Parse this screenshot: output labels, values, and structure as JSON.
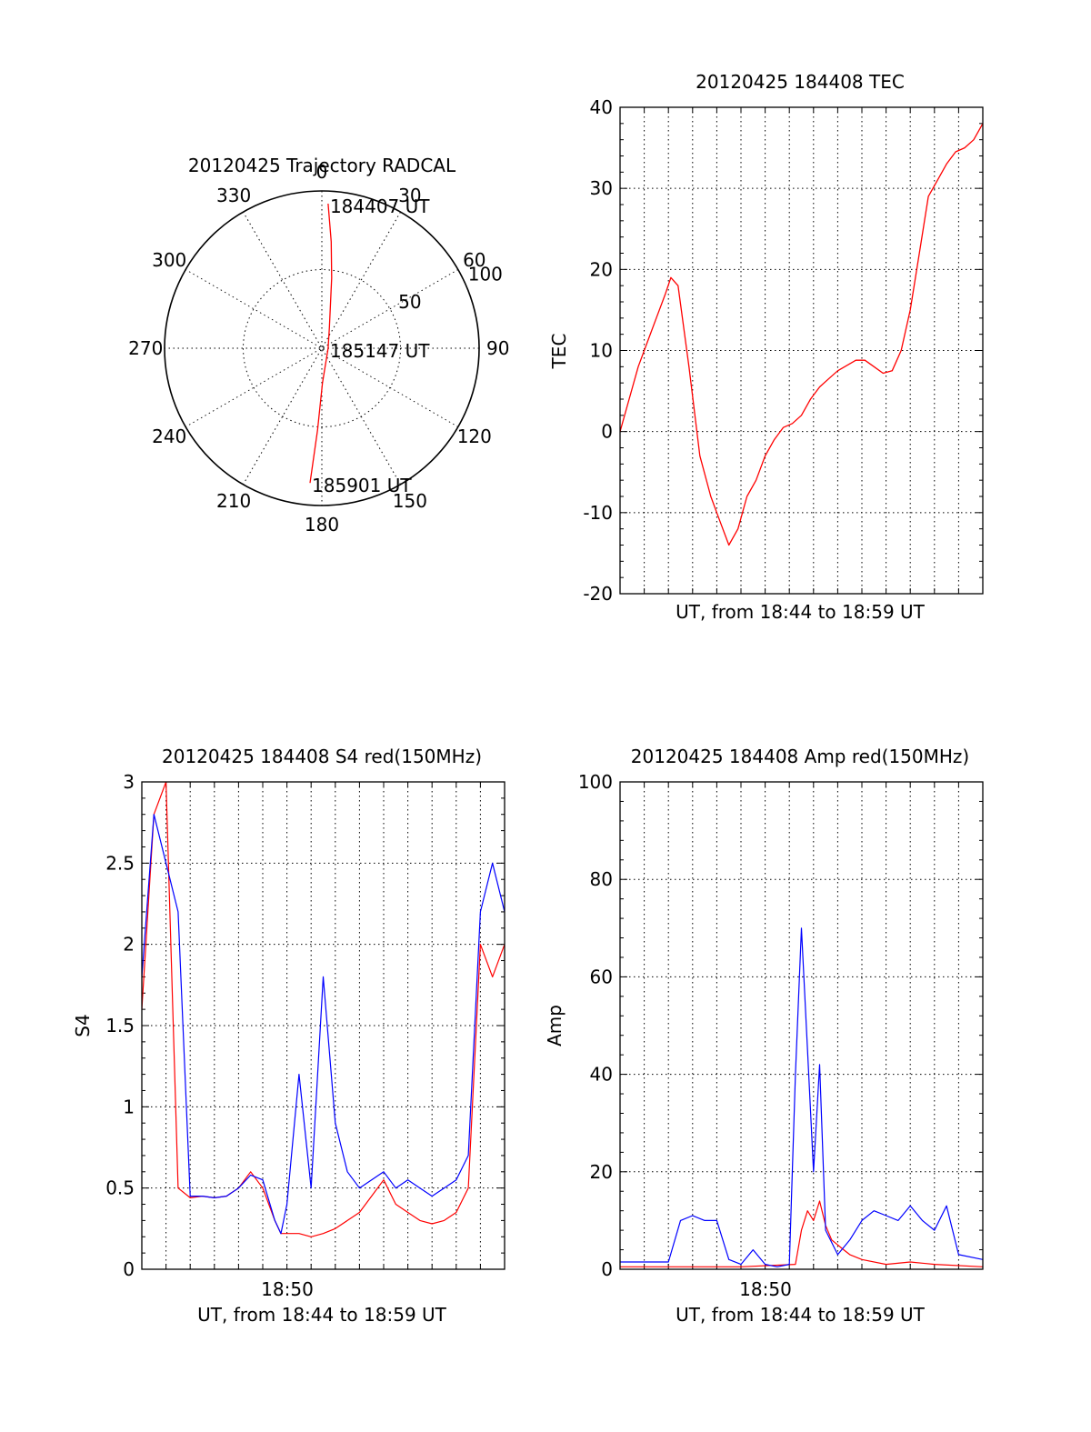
{
  "chart_data": [
    {
      "id": "trajectory",
      "type": "polar",
      "title": "20120425 Trajectory RADCAL",
      "angle_labels": [
        {
          "deg": 0,
          "text": "0"
        },
        {
          "deg": 30,
          "text": "30"
        },
        {
          "deg": 60,
          "text": "60"
        },
        {
          "deg": 90,
          "text": "90"
        },
        {
          "deg": 120,
          "text": "120"
        },
        {
          "deg": 150,
          "text": "150"
        },
        {
          "deg": 180,
          "text": "180"
        },
        {
          "deg": 210,
          "text": "210"
        },
        {
          "deg": 240,
          "text": "240"
        },
        {
          "deg": 270,
          "text": "270"
        },
        {
          "deg": 300,
          "text": "300"
        },
        {
          "deg": 330,
          "text": "330"
        }
      ],
      "ring_labels": [
        {
          "value": 50,
          "text": "50"
        },
        {
          "value": 100,
          "text": "100"
        }
      ],
      "rlim": [
        0,
        100
      ],
      "track": [
        {
          "az": 2.5,
          "r": 92
        },
        {
          "az": 5,
          "r": 68
        },
        {
          "az": 8,
          "r": 45
        },
        {
          "az": 20,
          "r": 14
        },
        {
          "az": 90,
          "r": 4
        },
        {
          "az": 179,
          "r": 22
        },
        {
          "az": 183,
          "r": 52
        },
        {
          "az": 185,
          "r": 86
        }
      ],
      "annotations": [
        {
          "text": "184407 UT",
          "az": 2.5,
          "r": 92
        },
        {
          "text": "185147 UT",
          "az": 90,
          "r": 4
        },
        {
          "text": "185901 UT",
          "az": 185,
          "r": 86
        }
      ],
      "track_color": "#ff0000"
    },
    {
      "id": "tec",
      "type": "line",
      "title": "20120425 184408 TEC",
      "xlabel": "UT, from 18:44 to 18:59 UT",
      "ylabel": "TEC",
      "xlim_minutes": [
        18.733,
        18.983
      ],
      "x_range_text": "18:44 to 18:59",
      "ylim": [
        -20,
        40
      ],
      "yticks": [
        -20,
        -10,
        0,
        10,
        20,
        30,
        40
      ],
      "series": [
        {
          "color": "#ff0000",
          "points": [
            [
              0,
              0
            ],
            [
              0.5,
              4
            ],
            [
              1,
              8
            ],
            [
              1.5,
              11
            ],
            [
              2,
              14
            ],
            [
              2.5,
              17
            ],
            [
              2.8,
              19
            ],
            [
              3.2,
              18
            ],
            [
              3.8,
              8
            ],
            [
              4.4,
              -3
            ],
            [
              5,
              -8
            ],
            [
              5.5,
              -11
            ],
            [
              6,
              -14
            ],
            [
              6.5,
              -12
            ],
            [
              7,
              -8
            ],
            [
              7.5,
              -6
            ],
            [
              8,
              -3
            ],
            [
              8.5,
              -1
            ],
            [
              9,
              0.5
            ],
            [
              9.5,
              1
            ],
            [
              10,
              2
            ],
            [
              10.5,
              4
            ],
            [
              11,
              5.5
            ],
            [
              11.5,
              6.5
            ],
            [
              12,
              7.5
            ],
            [
              13,
              8.8
            ],
            [
              13.5,
              8.8
            ],
            [
              14,
              8
            ],
            [
              14.5,
              7.2
            ],
            [
              15,
              7.5
            ],
            [
              15.5,
              10
            ],
            [
              16,
              15
            ],
            [
              16.5,
              22
            ],
            [
              17,
              29
            ],
            [
              17.5,
              31
            ],
            [
              18,
              33
            ],
            [
              18.5,
              34.5
            ],
            [
              19,
              35
            ],
            [
              19.5,
              36
            ],
            [
              20,
              38
            ]
          ]
        }
      ]
    },
    {
      "id": "s4",
      "type": "line",
      "title": "20120425 184408 S4 red(150MHz)",
      "xlabel": "UT, from 18:44 to 18:59 UT",
      "ylabel": "S4",
      "xtick_label": "18:50",
      "ylim": [
        0,
        3
      ],
      "yticks": [
        0,
        0.5,
        1,
        1.5,
        2,
        2.5,
        3
      ],
      "ytick_labels": [
        "0",
        "0.5",
        "1",
        "1.5",
        "2",
        "2.5",
        "3"
      ],
      "series": [
        {
          "color": "#ff0000",
          "points": [
            [
              0,
              1.6
            ],
            [
              1,
              2.8
            ],
            [
              2,
              3
            ],
            [
              3,
              0.5
            ],
            [
              4,
              0.44
            ],
            [
              5,
              0.45
            ],
            [
              6,
              0.44
            ],
            [
              7,
              0.45
            ],
            [
              8,
              0.5
            ],
            [
              9,
              0.6
            ],
            [
              10,
              0.5
            ],
            [
              11,
              0.3
            ],
            [
              11.5,
              0.22
            ],
            [
              12,
              0.22
            ],
            [
              13,
              0.22
            ],
            [
              14,
              0.2
            ],
            [
              15,
              0.22
            ],
            [
              16,
              0.25
            ],
            [
              17,
              0.3
            ],
            [
              18,
              0.35
            ],
            [
              19,
              0.45
            ],
            [
              20,
              0.55
            ],
            [
              21,
              0.4
            ],
            [
              22,
              0.35
            ],
            [
              23,
              0.3
            ],
            [
              24,
              0.28
            ],
            [
              25,
              0.3
            ],
            [
              26,
              0.35
            ],
            [
              27,
              0.5
            ],
            [
              28,
              2
            ],
            [
              29,
              1.8
            ],
            [
              30,
              2
            ]
          ]
        },
        {
          "color": "#0000ff",
          "points": [
            [
              0,
              1.8
            ],
            [
              1,
              2.8
            ],
            [
              2,
              2.5
            ],
            [
              3,
              2.2
            ],
            [
              4,
              0.45
            ],
            [
              5,
              0.45
            ],
            [
              6,
              0.44
            ],
            [
              7,
              0.45
            ],
            [
              8,
              0.5
            ],
            [
              9,
              0.58
            ],
            [
              10,
              0.55
            ],
            [
              11,
              0.3
            ],
            [
              11.5,
              0.22
            ],
            [
              12,
              0.4
            ],
            [
              13,
              1.2
            ],
            [
              14,
              0.5
            ],
            [
              15,
              1.8
            ],
            [
              16,
              0.9
            ],
            [
              17,
              0.6
            ],
            [
              18,
              0.5
            ],
            [
              19,
              0.55
            ],
            [
              20,
              0.6
            ],
            [
              21,
              0.5
            ],
            [
              22,
              0.55
            ],
            [
              23,
              0.5
            ],
            [
              24,
              0.45
            ],
            [
              25,
              0.5
            ],
            [
              26,
              0.55
            ],
            [
              27,
              0.7
            ],
            [
              28,
              2.2
            ],
            [
              29,
              2.5
            ],
            [
              30,
              2.2
            ]
          ]
        }
      ]
    },
    {
      "id": "amp",
      "type": "line",
      "title": "20120425 184408 Amp red(150MHz)",
      "xlabel": "UT, from 18:44 to 18:59 UT",
      "ylabel": "Amp",
      "xtick_label": "18:50",
      "ylim": [
        0,
        100
      ],
      "yticks": [
        0,
        20,
        40,
        60,
        80,
        100
      ],
      "series": [
        {
          "color": "#ff0000",
          "points": [
            [
              0,
              0.5
            ],
            [
              10,
              0.5
            ],
            [
              14.5,
              1
            ],
            [
              15,
              8
            ],
            [
              15.5,
              12
            ],
            [
              16,
              10
            ],
            [
              16.5,
              14
            ],
            [
              17,
              9
            ],
            [
              17.5,
              6
            ],
            [
              18,
              5
            ],
            [
              18.5,
              4
            ],
            [
              19,
              3
            ],
            [
              20,
              2
            ],
            [
              22,
              1
            ],
            [
              24,
              1.5
            ],
            [
              26,
              1
            ],
            [
              30,
              0.5
            ]
          ]
        },
        {
          "color": "#0000ff",
          "points": [
            [
              0,
              1.5
            ],
            [
              4,
              1.5
            ],
            [
              5,
              10
            ],
            [
              6,
              11
            ],
            [
              7,
              10
            ],
            [
              8,
              10
            ],
            [
              9,
              2
            ],
            [
              10,
              1
            ],
            [
              11,
              4
            ],
            [
              12,
              1
            ],
            [
              13,
              0.5
            ],
            [
              14,
              1
            ],
            [
              14.5,
              40
            ],
            [
              15,
              70
            ],
            [
              15.5,
              45
            ],
            [
              16,
              20
            ],
            [
              16.5,
              42
            ],
            [
              17,
              8
            ],
            [
              18,
              3
            ],
            [
              19,
              6
            ],
            [
              20,
              10
            ],
            [
              21,
              12
            ],
            [
              22,
              11
            ],
            [
              23,
              10
            ],
            [
              24,
              13
            ],
            [
              25,
              10
            ],
            [
              26,
              8
            ],
            [
              27,
              13
            ],
            [
              28,
              3
            ],
            [
              30,
              2
            ]
          ]
        }
      ]
    }
  ]
}
